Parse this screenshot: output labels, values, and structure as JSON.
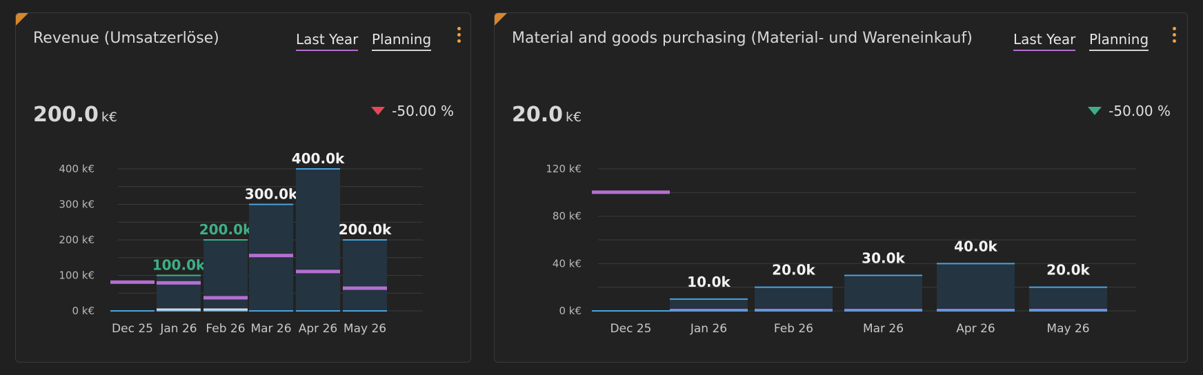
{
  "colors": {
    "accent_orange": "#f0a13a",
    "last_year": "#b46fd0",
    "planning": "#d6d6d6",
    "bar_fill": "#243440",
    "bar_top": "#4aa3e0",
    "green_label": "#3fae86",
    "red_delta": "#e5475a",
    "green_delta": "#3fae86"
  },
  "icons": {
    "menu": "kebab-vertical-icon",
    "delta_down_red": "triangle-down-icon",
    "delta_down_green": "triangle-down-icon"
  },
  "cards": [
    {
      "title": "Revenue (Umsatzerlöse)",
      "tabs": {
        "last_year": "Last Year",
        "planning": "Planning"
      },
      "kpi": {
        "value": "200.0",
        "unit": "k€"
      },
      "delta": {
        "text": "-50.00 %",
        "direction": "down",
        "color": "red"
      }
    },
    {
      "title": "Material and goods purchasing (Material- und Wareneinkauf)",
      "tabs": {
        "last_year": "Last Year",
        "planning": "Planning"
      },
      "kpi": {
        "value": "20.0",
        "unit": "k€"
      },
      "delta": {
        "text": "-50.00 %",
        "direction": "down",
        "color": "green"
      }
    }
  ],
  "chart_data": [
    {
      "type": "bar",
      "categories": [
        "Dec 25",
        "Jan 26",
        "Feb 26",
        "Mar 26",
        "Apr 26",
        "May 26"
      ],
      "series": [
        {
          "name": "Last Year",
          "values": [
            80,
            78,
            36,
            155,
            110,
            63
          ]
        },
        {
          "name": "Planning",
          "values": [
            0,
            3,
            3,
            null,
            null,
            null
          ]
        },
        {
          "values": [
            0,
            100,
            200,
            300,
            400,
            200
          ]
        }
      ],
      "data_labels": [
        "",
        "100.0k",
        "200.0k",
        "300.0k",
        "400.0k",
        "200.0k"
      ],
      "label_colors": [
        "",
        "green",
        "green",
        "white",
        "white",
        "white"
      ],
      "yticks": [
        0,
        100,
        200,
        300,
        400
      ],
      "ytick_labels": [
        "0 k€",
        "100 k€",
        "200 k€",
        "300 k€",
        "400 k€"
      ],
      "ylim": [
        0,
        400
      ],
      "unit": "k€",
      "grid": true,
      "legend": "tabs-top-right"
    },
    {
      "type": "bar",
      "categories": [
        "Dec 25",
        "Jan 26",
        "Feb 26",
        "Mar 26",
        "Apr 26",
        "May 26"
      ],
      "series": [
        {
          "name": "Last Year",
          "values": [
            100,
            0,
            0,
            0,
            0,
            0
          ]
        },
        {
          "values": [
            0,
            10,
            20,
            30,
            40,
            20
          ]
        }
      ],
      "data_labels": [
        "",
        "10.0k",
        "20.0k",
        "30.0k",
        "40.0k",
        "20.0k"
      ],
      "label_colors": [
        "",
        "white",
        "white",
        "white",
        "white",
        "white"
      ],
      "yticks": [
        0,
        40,
        80,
        120
      ],
      "ytick_labels": [
        "0 k€",
        "40 k€",
        "80 k€",
        "120 k€"
      ],
      "ylim": [
        0,
        120
      ],
      "unit": "k€",
      "grid": true,
      "legend": "tabs-top-right"
    }
  ]
}
